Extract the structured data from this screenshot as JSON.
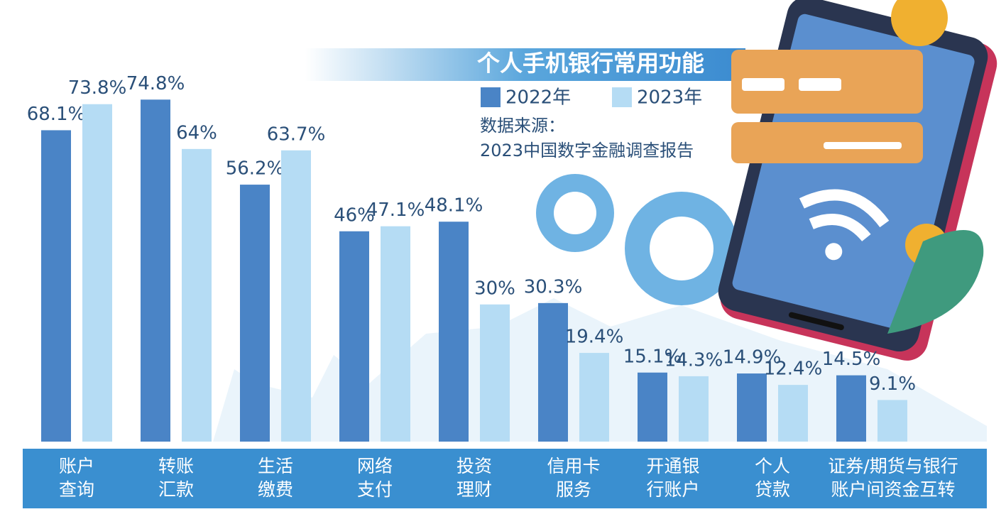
{
  "chart_data": {
    "type": "bar",
    "title": "个人手机银行常用功能",
    "source_label": "数据来源：",
    "source": "2023中国数字金融调查报告",
    "categories": [
      [
        "账户",
        "查询"
      ],
      [
        "转账",
        "汇款"
      ],
      [
        "生活",
        "缴费"
      ],
      [
        "网络",
        "支付"
      ],
      [
        "投资",
        "理财"
      ],
      [
        "信用卡",
        "服务"
      ],
      [
        "开通银",
        "行账户"
      ],
      [
        "个人",
        "贷款"
      ],
      [
        "证券/期货与银行",
        "账户间资金互转"
      ]
    ],
    "series": [
      {
        "name": "2022年",
        "color": "#4a84c6",
        "values": [
          68.1,
          74.8,
          56.2,
          46,
          48.1,
          30.3,
          15.1,
          14.9,
          14.5
        ],
        "value_labels": [
          "68.1%",
          "74.8%",
          "56.2%",
          "46%",
          "48.1%",
          "30.3%",
          "15.1%",
          "14.9%",
          "14.5%"
        ]
      },
      {
        "name": "2023年",
        "color": "#b5dcf4",
        "values": [
          73.8,
          64,
          63.7,
          47.1,
          30,
          19.4,
          14.3,
          12.4,
          9.1
        ],
        "value_labels": [
          "73.8%",
          "64%",
          "63.7%",
          "47.1%",
          "30%",
          "19.4%",
          "14.3%",
          "12.4%",
          "9.1%"
        ]
      }
    ]
  }
}
